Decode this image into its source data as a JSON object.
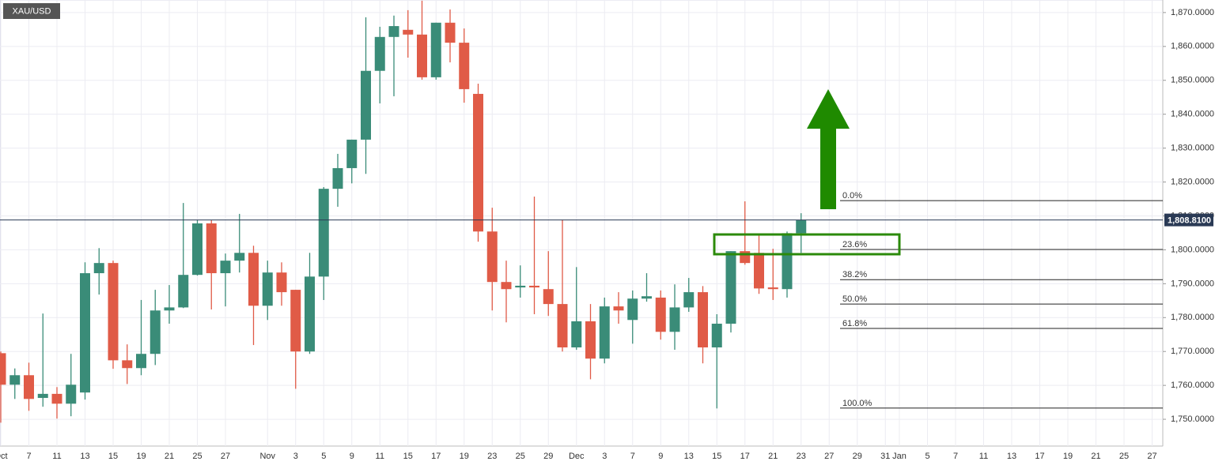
{
  "chart_data": {
    "type": "candlestick",
    "title": "XAU/USD",
    "categories": [
      "Oct",
      null,
      "7",
      null,
      "11",
      null,
      "13",
      null,
      "15",
      null,
      "19",
      null,
      "21",
      null,
      "25",
      null,
      "27",
      null,
      null,
      "Nov",
      null,
      "3",
      null,
      "5",
      null,
      "9",
      null,
      "11",
      null,
      "15",
      null,
      "17",
      null,
      "19",
      null,
      "23",
      null,
      "25",
      null,
      "29",
      null,
      "Dec",
      null,
      "3",
      null,
      "7",
      null,
      "9",
      null,
      "13",
      null,
      "15",
      null,
      "17",
      null,
      "21",
      null,
      "23",
      null,
      "27",
      null,
      "29",
      null,
      "31",
      "Jan",
      null,
      "5",
      null,
      "7",
      null,
      "11",
      null,
      "13",
      null,
      "17",
      null,
      "19",
      null,
      "21",
      null,
      "25",
      null,
      "27"
    ],
    "open": [
      1769.5,
      1760.2,
      1763,
      1756.3,
      1757.5,
      1754.6,
      1757.9,
      1793.1,
      1796.1,
      1767.4,
      1765.1,
      1769.3,
      1782.1,
      1783,
      1792.6,
      1807.8,
      1793.1,
      1796.8,
      1799.1,
      1783.5,
      1793.3,
      1788.2,
      1770,
      1792.1,
      1818,
      1824.1,
      1832.5,
      1852.8,
      1862.8,
      1864.9,
      1863.5,
      1850.9,
      1867,
      1861.1,
      1846,
      1805.4,
      1790.5,
      1788.9,
      1789.4,
      1788.4,
      1784,
      1771.2,
      1778.9,
      1767.9,
      1783.3,
      1779.3,
      1785.6,
      1785.9,
      1775.8,
      1783,
      1787.5,
      1771.2,
      1778.2,
      1799.6,
      1799.1,
      1788.9,
      1788.4,
      1804.9,
      null,
      null,
      null,
      null,
      null,
      null,
      null,
      null,
      null,
      null,
      null,
      null,
      null,
      null,
      null,
      null,
      null,
      null,
      null,
      null,
      null,
      null,
      null,
      null,
      null
    ],
    "high": [
      1770,
      1765,
      1766.7,
      1781.2,
      1759.5,
      1769.3,
      1796.3,
      1800.5,
      1796.8,
      1772.1,
      1785.2,
      1788.2,
      1789.6,
      1813.8,
      1808.7,
      1808.7,
      1798.9,
      1810.6,
      1801.2,
      1796.8,
      1796.3,
      1788.2,
      1799.1,
      1818.5,
      1828.3,
      1832.5,
      1868.6,
      1865.8,
      1869.1,
      1870.7,
      1873.5,
      1867,
      1870.9,
      1865.3,
      1849,
      1812.4,
      1796.8,
      1795.4,
      1815.7,
      1799.6,
      1808.9,
      1794.9,
      1784,
      1785.9,
      1787.5,
      1788,
      1793.1,
      1788,
      1789.8,
      1791.7,
      1789.3,
      1781,
      1799.6,
      1814.3,
      1804.3,
      1800.3,
      1805.4,
      1810.8,
      null,
      null,
      null,
      null,
      null,
      null,
      null,
      null,
      null,
      null,
      null,
      null,
      null,
      null,
      null,
      null,
      null,
      null,
      null,
      null,
      null,
      null,
      null,
      null,
      null
    ],
    "low": [
      1749,
      1756,
      1752.5,
      1753.7,
      1750.2,
      1750.9,
      1755.8,
      1786.8,
      1764.9,
      1760.4,
      1763,
      1766,
      1778.2,
      1782.8,
      1792.4,
      1782.4,
      1783.3,
      1793.3,
      1771.9,
      1779.3,
      1783.5,
      1759,
      1769.3,
      1785.2,
      1812.7,
      1819.6,
      1822.4,
      1843.2,
      1845.3,
      1856.7,
      1850.2,
      1850.2,
      1855.3,
      1843.4,
      1802.4,
      1782.1,
      1778.6,
      1785.9,
      1781,
      1780.5,
      1770,
      1770.5,
      1761.8,
      1766.5,
      1778.2,
      1772.3,
      1784.7,
      1773.5,
      1770.5,
      1781.7,
      1766.5,
      1753.2,
      1775.6,
      1795.6,
      1787,
      1785.2,
      1785.9,
      1799.1,
      null,
      null,
      null,
      null,
      null,
      null,
      null,
      null,
      null,
      null,
      null,
      null,
      null,
      null,
      null,
      null,
      null,
      null,
      null,
      null,
      null,
      null,
      null,
      null,
      null
    ],
    "close": [
      1760.2,
      1763,
      1756,
      1757.5,
      1754.6,
      1760.2,
      1793.1,
      1796.1,
      1767.4,
      1765.1,
      1769.3,
      1782.1,
      1783,
      1792.6,
      1807.8,
      1793.1,
      1796.8,
      1799.1,
      1783.5,
      1793.3,
      1787.5,
      1770,
      1792.1,
      1818,
      1824.1,
      1832.5,
      1852.8,
      1862.8,
      1866,
      1863.5,
      1850.9,
      1867,
      1861.1,
      1847.4,
      1805.4,
      1790.5,
      1788.4,
      1789.4,
      1788.9,
      1784,
      1771.2,
      1778.9,
      1767.9,
      1783.3,
      1782.1,
      1785.6,
      1786.3,
      1775.8,
      1783,
      1787.5,
      1771.2,
      1778.2,
      1799.6,
      1796.1,
      1788.6,
      1788.4,
      1804.9,
      1808.7,
      null,
      null,
      null,
      null,
      null,
      null,
      null,
      null,
      null,
      null,
      null,
      null,
      null,
      null,
      null,
      null,
      null,
      null,
      null,
      null,
      null,
      null,
      null,
      null,
      null
    ],
    "up_color": "#3a8c78",
    "down_color": "#e05b47",
    "ylim": [
      1742.1,
      1873.7
    ],
    "yticks": [
      {
        "value": 1750,
        "label": "1,750.0000"
      },
      {
        "value": 1760,
        "label": "1,760.0000"
      },
      {
        "value": 1770,
        "label": "1,770.0000"
      },
      {
        "value": 1780,
        "label": "1,780.0000"
      },
      {
        "value": 1790,
        "label": "1,790.0000"
      },
      {
        "value": 1800,
        "label": "1,800.0000"
      },
      {
        "value": 1810,
        "label": "1,810.0000"
      },
      {
        "value": 1820,
        "label": "1,820.0000"
      },
      {
        "value": 1830,
        "label": "1,830.0000"
      },
      {
        "value": 1840,
        "label": "1,840.0000"
      },
      {
        "value": 1850,
        "label": "1,850.0000"
      },
      {
        "value": 1860,
        "label": "1,860.0000"
      },
      {
        "value": 1870,
        "label": "1,870.0000"
      }
    ],
    "last_price": {
      "value": 1808.81,
      "label": "1,808.8100"
    },
    "annotations": [
      {
        "label": "0.0%",
        "value": 1814.5
      },
      {
        "label": "23.6%",
        "value": 1800.1
      },
      {
        "label": "38.2%",
        "value": 1791.2
      },
      {
        "label": "50.0%",
        "value": 1784
      },
      {
        "label": "61.8%",
        "value": 1776.8
      },
      {
        "label": "100.0%",
        "value": 1753.3
      }
    ],
    "grid": true
  }
}
